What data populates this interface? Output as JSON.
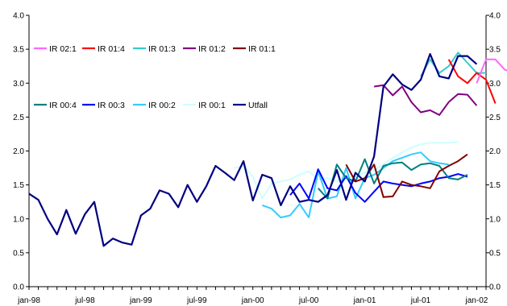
{
  "chart_data": {
    "type": "line",
    "title": "",
    "xlabel": "",
    "ylabel": "",
    "ylim": [
      0,
      4
    ],
    "y_ticks": [
      "0.0",
      "0.5",
      "1.0",
      "1.5",
      "2.0",
      "2.5",
      "3.0",
      "3.5",
      "4.0"
    ],
    "y_ticks_right": [
      "0.0",
      "0.5",
      "1.0",
      "1.5",
      "2.0",
      "2.5",
      "3.0",
      "3.5",
      "4.0"
    ],
    "x_ticks": [
      "jan-98",
      "jul-98",
      "jan-99",
      "jul-99",
      "jan-00",
      "jul-00",
      "jan-01",
      "jul-01",
      "jan-02"
    ],
    "legend_position": "inside upper-left",
    "series": [
      {
        "name": "IR 02:1",
        "color": "#ff66ff",
        "start": 48,
        "values": [
          3.0,
          3.35,
          3.35,
          3.2,
          3.15
        ]
      },
      {
        "name": "IR 01:4",
        "color": "#ff0000",
        "start": 45,
        "values": [
          3.35,
          3.1,
          3.0,
          3.15,
          3.05,
          2.7
        ]
      },
      {
        "name": "IR 01:3",
        "color": "#33cccc",
        "start": 42,
        "values": [
          3.1,
          3.35,
          3.15,
          3.25,
          3.45,
          3.3,
          3.15,
          3.15
        ]
      },
      {
        "name": "IR 01:2",
        "color": "#800080",
        "start": 37,
        "values": [
          2.95,
          2.97,
          2.82,
          2.95,
          2.72,
          2.57,
          2.6,
          2.53,
          2.72,
          2.84,
          2.83,
          2.67
        ]
      },
      {
        "name": "IR 01:1",
        "color": "#800000",
        "start": 34,
        "values": [
          1.8,
          1.55,
          1.6,
          1.8,
          1.32,
          1.33,
          1.55,
          1.5,
          1.48,
          1.45,
          1.7,
          1.78,
          1.85,
          1.95
        ]
      },
      {
        "name": "IR 00:4",
        "color": "#008080",
        "start": 31,
        "values": [
          1.45,
          1.3,
          1.8,
          1.6,
          1.55,
          1.88,
          1.52,
          1.78,
          1.82,
          1.83,
          1.72,
          1.8,
          1.82,
          1.78,
          1.6,
          1.58,
          1.65
        ]
      },
      {
        "name": "IR 00:3",
        "color": "#0000ff",
        "start": 28,
        "values": [
          1.35,
          1.52,
          1.3,
          1.73,
          1.45,
          1.42,
          1.63,
          1.38,
          1.25,
          1.4,
          1.55,
          1.52,
          1.5,
          1.48,
          1.52,
          1.55,
          1.6,
          1.62,
          1.66,
          1.62
        ]
      },
      {
        "name": "IR 00:2",
        "color": "#33ccff",
        "start": 25,
        "values": [
          1.2,
          1.15,
          1.02,
          1.05,
          1.22,
          1.02,
          1.7,
          1.3,
          1.33,
          1.75,
          1.3,
          1.6,
          1.65,
          1.75,
          1.85,
          1.9,
          1.95,
          1.98,
          1.85,
          1.82,
          1.8
        ]
      },
      {
        "name": "IR 00:1",
        "color": "#ccffff",
        "start": 22,
        "values": [
          1.75,
          1.78,
          1.62,
          1.3,
          1.52,
          1.55,
          1.58,
          1.65,
          1.7,
          1.58,
          1.6,
          1.55,
          1.6,
          1.62,
          1.68,
          1.72,
          1.8,
          1.9,
          1.98,
          2.05,
          2.1,
          2.12,
          2.12,
          2.12,
          2.13
        ]
      },
      {
        "name": "Utfall",
        "color": "#000080",
        "start": 0,
        "values": [
          1.37,
          1.28,
          1.0,
          0.77,
          1.13,
          0.78,
          1.07,
          1.25,
          0.6,
          0.71,
          0.65,
          0.62,
          1.05,
          1.15,
          1.42,
          1.37,
          1.17,
          1.5,
          1.25,
          1.48,
          1.78,
          1.68,
          1.57,
          1.85,
          1.27,
          1.65,
          1.6,
          1.2,
          1.48,
          1.25,
          1.28,
          1.25,
          1.35,
          1.72,
          1.28,
          1.68,
          1.55,
          1.92,
          2.95,
          3.13,
          2.98,
          2.9,
          3.05,
          3.43,
          3.1,
          3.07,
          3.4,
          3.4,
          3.28
        ]
      }
    ]
  }
}
